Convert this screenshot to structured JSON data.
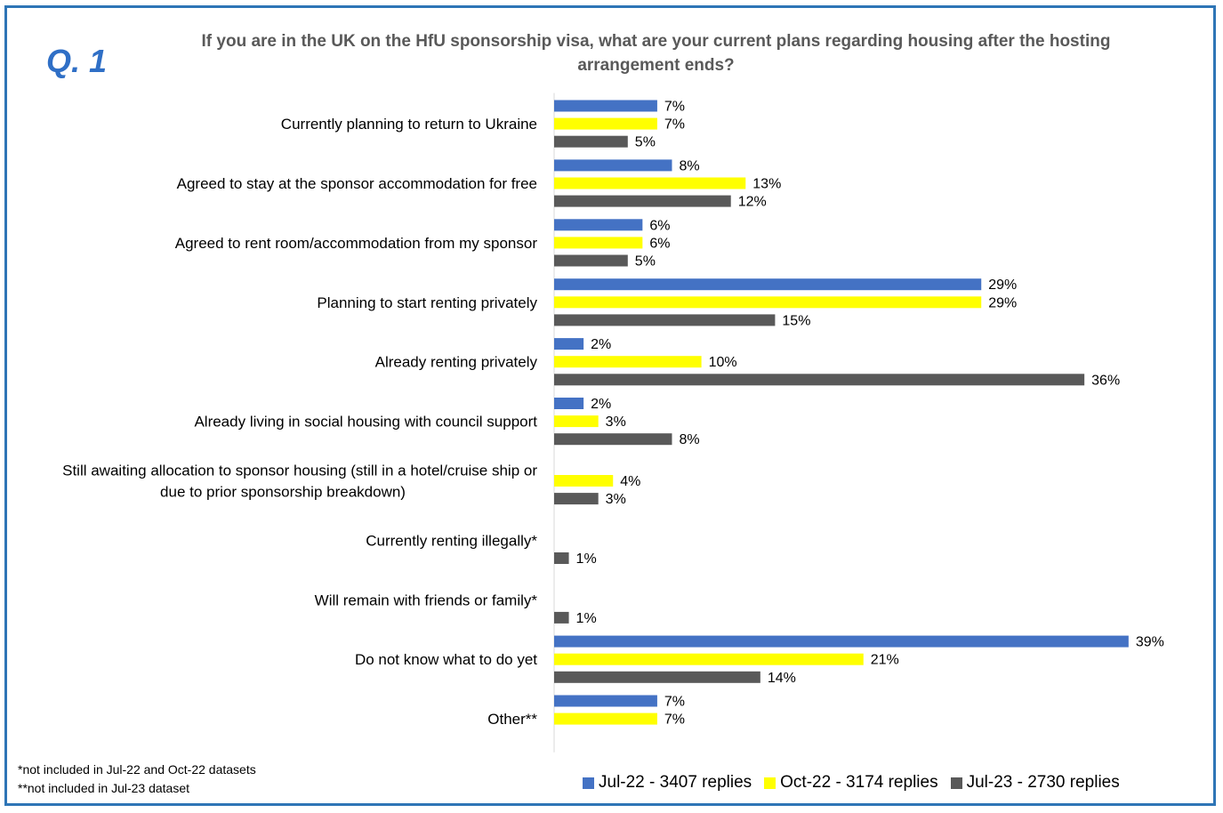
{
  "question_label": "Q. 1",
  "chart_data": {
    "type": "bar",
    "orientation": "horizontal",
    "title": "If you are in the UK on the HfU sponsorship visa, what are your current plans regarding housing after the hosting arrangement ends?",
    "categories": [
      "Currently planning to return to Ukraine",
      "Agreed to stay at the sponsor accommodation for free",
      "Agreed to rent room/accommodation from my sponsor",
      "Planning to start renting privately",
      "Already renting privately",
      "Already living in social housing with council support",
      "Still awaiting allocation to sponsor housing (still in a hotel/cruise ship or due to prior sponsorship breakdown)",
      "Currently renting illegally*",
      "Will remain with friends or family*",
      "Do not know what to do yet",
      "Other**"
    ],
    "category_lines": [
      [
        "Currently planning to return to Ukraine"
      ],
      [
        "Agreed to stay at the sponsor accommodation for free"
      ],
      [
        "Agreed to rent room/accommodation from my sponsor"
      ],
      [
        "Planning to start renting privately"
      ],
      [
        "Already renting privately"
      ],
      [
        "Already living in social housing with council support"
      ],
      [
        "Still awaiting allocation to sponsor housing (still in a hotel/cruise ship or",
        "due to prior sponsorship breakdown)"
      ],
      [
        "Currently renting illegally*"
      ],
      [
        "Will remain with friends or family*"
      ],
      [
        "Do not know what to do yet"
      ],
      [
        "Other**"
      ]
    ],
    "series": [
      {
        "name": "Jul-22 - 3407 replies",
        "color": "#4472c4",
        "values": [
          7,
          8,
          6,
          29,
          2,
          2,
          null,
          null,
          null,
          39,
          7
        ]
      },
      {
        "name": "Oct-22 - 3174 replies",
        "color": "#ffff00",
        "values": [
          7,
          13,
          6,
          29,
          10,
          3,
          4,
          null,
          null,
          21,
          7
        ]
      },
      {
        "name": "Jul-23 - 2730 replies",
        "color": "#595959",
        "values": [
          5,
          12,
          5,
          15,
          36,
          8,
          3,
          1,
          1,
          14,
          null
        ]
      }
    ],
    "value_suffix": "%",
    "xlim": [
      0,
      40
    ],
    "grid": false,
    "legend_position": "bottom-right"
  },
  "notes": [
    "*not included in Jul-22 and Oct-22 datasets",
    "**not included in Jul-23 dataset"
  ]
}
